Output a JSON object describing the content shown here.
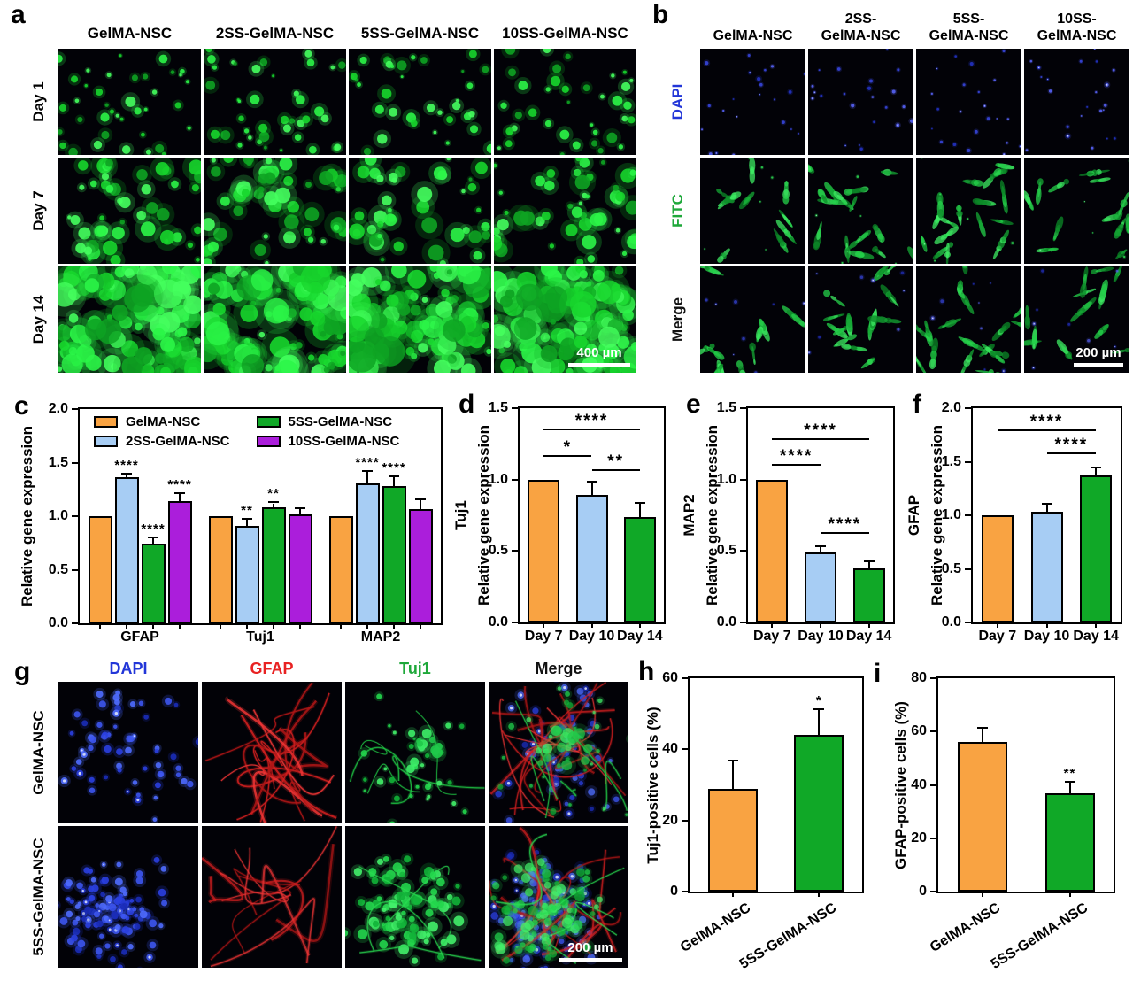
{
  "panels": {
    "a": {
      "letter": "a",
      "col_headers": [
        "GelMA-NSC",
        "2SS-GelMA-NSC",
        "5SS-GelMA-NSC",
        "10SS-GelMA-NSC"
      ],
      "row_labels": [
        "Day 1",
        "Day 7",
        "Day 14"
      ],
      "scale_bar": "400 µm"
    },
    "b": {
      "letter": "b",
      "col_headers": [
        [
          "GelMA-NSC"
        ],
        [
          "2SS-",
          "GelMA-NSC"
        ],
        [
          "5SS-",
          "GelMA-NSC"
        ],
        [
          "10SS-",
          "GelMA-NSC"
        ]
      ],
      "row_labels": [
        {
          "text": "DAPI",
          "color": "#2236d8"
        },
        {
          "text": "FITC",
          "color": "#1ea83a"
        },
        {
          "text": "Merge",
          "color": "#111111"
        }
      ],
      "scale_bar": "200 µm"
    },
    "c": {
      "letter": "c"
    },
    "d": {
      "letter": "d"
    },
    "e": {
      "letter": "e"
    },
    "f": {
      "letter": "f"
    },
    "g": {
      "letter": "g",
      "col_headers": [
        {
          "text": "DAPI",
          "color": "#2236d8"
        },
        {
          "text": "GFAP",
          "color": "#e82222"
        },
        {
          "text": "Tuj1",
          "color": "#1ea83a"
        },
        {
          "text": "Merge",
          "color": "#111111"
        }
      ],
      "row_labels": [
        "GelMA-NSC",
        "5SS-GelMA-NSC"
      ],
      "scale_bar": "200 µm"
    },
    "h": {
      "letter": "h"
    },
    "i": {
      "letter": "i"
    }
  },
  "colors": {
    "orange": "#F9A342",
    "blue": "#A7CDF4",
    "green": "#10A827",
    "purple": "#AB1EDB"
  },
  "chart_data": [
    {
      "id": "c",
      "type": "bar",
      "ylabels": [
        "Relative gene expression"
      ],
      "ylim": [
        0,
        2.0
      ],
      "yticks": [
        {
          "v": 0,
          "t": "0.0"
        },
        {
          "v": 0.5,
          "t": "0.5"
        },
        {
          "v": 1.0,
          "t": "1.0"
        },
        {
          "v": 1.5,
          "t": "1.5"
        },
        {
          "v": 2.0,
          "t": "2.0"
        }
      ],
      "legend": [
        {
          "label": "GelMA-NSC",
          "color": "orange"
        },
        {
          "label": "2SS-GelMA-NSC",
          "color": "blue"
        },
        {
          "label": "5SS-GelMA-NSC",
          "color": "green"
        },
        {
          "label": "10SS-GelMA-NSC",
          "color": "purple"
        }
      ],
      "groups": [
        {
          "label": "GFAP",
          "bars": [
            {
              "series": "GelMA-NSC",
              "color": "orange",
              "value": 1.0,
              "error": 0,
              "star": ""
            },
            {
              "series": "2SS-GelMA-NSC",
              "color": "blue",
              "value": 1.36,
              "error": 0.03,
              "star": "****"
            },
            {
              "series": "5SS-GelMA-NSC",
              "color": "green",
              "value": 0.74,
              "error": 0.05,
              "star": "****"
            },
            {
              "series": "10SS-GelMA-NSC",
              "color": "purple",
              "value": 1.14,
              "error": 0.07,
              "star": "****"
            }
          ]
        },
        {
          "label": "Tuj1",
          "bars": [
            {
              "series": "GelMA-NSC",
              "color": "orange",
              "value": 1.0,
              "error": 0,
              "star": ""
            },
            {
              "series": "2SS-GelMA-NSC",
              "color": "blue",
              "value": 0.91,
              "error": 0.06,
              "star": "**"
            },
            {
              "series": "5SS-GelMA-NSC",
              "color": "green",
              "value": 1.08,
              "error": 0.04,
              "star": "**"
            },
            {
              "series": "10SS-GelMA-NSC",
              "color": "purple",
              "value": 1.02,
              "error": 0.05,
              "star": ""
            }
          ]
        },
        {
          "label": "MAP2",
          "bars": [
            {
              "series": "GelMA-NSC",
              "color": "orange",
              "value": 1.0,
              "error": 0,
              "star": ""
            },
            {
              "series": "2SS-GelMA-NSC",
              "color": "blue",
              "value": 1.31,
              "error": 0.1,
              "star": "****"
            },
            {
              "series": "5SS-GelMA-NSC",
              "color": "green",
              "value": 1.28,
              "error": 0.08,
              "star": "****"
            },
            {
              "series": "10SS-GelMA-NSC",
              "color": "purple",
              "value": 1.07,
              "error": 0.08,
              "star": ""
            }
          ]
        }
      ]
    },
    {
      "id": "d",
      "type": "bar",
      "ylabels": [
        "Relative gene expression",
        "Tuj1"
      ],
      "ylim": [
        0,
        1.5
      ],
      "yticks": [
        {
          "v": 0,
          "t": "0.0"
        },
        {
          "v": 0.5,
          "t": "0.5"
        },
        {
          "v": 1.0,
          "t": "1.0"
        },
        {
          "v": 1.5,
          "t": "1.5"
        }
      ],
      "groups": [
        {
          "label": "Day 7",
          "bars": [
            {
              "color": "orange",
              "value": 1.0,
              "error": 0,
              "star": ""
            }
          ]
        },
        {
          "label": "Day 10",
          "bars": [
            {
              "color": "blue",
              "value": 0.89,
              "error": 0.09,
              "star": ""
            }
          ]
        },
        {
          "label": "Day 14",
          "bars": [
            {
              "color": "green",
              "value": 0.74,
              "error": 0.09,
              "star": ""
            }
          ]
        }
      ],
      "brackets": [
        {
          "from": 0,
          "to": 2,
          "y": 1.36,
          "label": "****"
        },
        {
          "from": 0,
          "to": 1,
          "y": 1.17,
          "label": "*"
        },
        {
          "from": 1,
          "to": 2,
          "y": 1.07,
          "label": "**"
        }
      ]
    },
    {
      "id": "e",
      "type": "bar",
      "ylabels": [
        "Relative gene expression",
        "MAP2"
      ],
      "ylim": [
        0,
        1.5
      ],
      "yticks": [
        {
          "v": 0,
          "t": "0.0"
        },
        {
          "v": 0.5,
          "t": "0.5"
        },
        {
          "v": 1.0,
          "t": "1.0"
        },
        {
          "v": 1.5,
          "t": "1.5"
        }
      ],
      "groups": [
        {
          "label": "Day 7",
          "bars": [
            {
              "color": "orange",
              "value": 1.0,
              "error": 0,
              "star": ""
            }
          ]
        },
        {
          "label": "Day 10",
          "bars": [
            {
              "color": "blue",
              "value": 0.49,
              "error": 0.04,
              "star": ""
            }
          ]
        },
        {
          "label": "Day 14",
          "bars": [
            {
              "color": "green",
              "value": 0.38,
              "error": 0.04,
              "star": ""
            }
          ]
        }
      ],
      "brackets": [
        {
          "from": 0,
          "to": 2,
          "y": 1.29,
          "label": "****"
        },
        {
          "from": 0,
          "to": 1,
          "y": 1.11,
          "label": "****"
        },
        {
          "from": 1,
          "to": 2,
          "y": 0.63,
          "label": "****"
        }
      ]
    },
    {
      "id": "f",
      "type": "bar",
      "ylabels": [
        "Relative gene expression",
        "GFAP"
      ],
      "ylim": [
        0,
        2.0
      ],
      "yticks": [
        {
          "v": 0,
          "t": "0.0"
        },
        {
          "v": 0.5,
          "t": "0.5"
        },
        {
          "v": 1.0,
          "t": "1.0"
        },
        {
          "v": 1.5,
          "t": "1.5"
        },
        {
          "v": 2.0,
          "t": "2.0"
        }
      ],
      "groups": [
        {
          "label": "Day 7",
          "bars": [
            {
              "color": "orange",
              "value": 1.0,
              "error": 0,
              "star": ""
            }
          ]
        },
        {
          "label": "Day 10",
          "bars": [
            {
              "color": "blue",
              "value": 1.03,
              "error": 0.07,
              "star": ""
            }
          ]
        },
        {
          "label": "Day 14",
          "bars": [
            {
              "color": "green",
              "value": 1.37,
              "error": 0.07,
              "star": ""
            }
          ]
        }
      ],
      "brackets": [
        {
          "from": 0,
          "to": 2,
          "y": 1.8,
          "label": "****"
        },
        {
          "from": 1,
          "to": 2,
          "y": 1.59,
          "label": "****"
        }
      ]
    },
    {
      "id": "h",
      "type": "bar",
      "ylabels": [
        "Tuj1-positive cells (%)"
      ],
      "ylim": [
        0,
        60
      ],
      "yticks": [
        {
          "v": 0,
          "t": "0"
        },
        {
          "v": 20,
          "t": "20"
        },
        {
          "v": 40,
          "t": "40"
        },
        {
          "v": 60,
          "t": "60"
        }
      ],
      "groups": [
        {
          "label": "GelMA-NSC",
          "bars": [
            {
              "color": "orange",
              "value": 29,
              "error": 7.5,
              "star": ""
            }
          ]
        },
        {
          "label": "5SS-GelMA-NSC",
          "bars": [
            {
              "color": "green",
              "value": 44,
              "error": 7,
              "star": "*"
            }
          ]
        }
      ],
      "brackets": []
    },
    {
      "id": "i",
      "type": "bar",
      "ylabels": [
        "GFAP-positive cells (%)"
      ],
      "ylim": [
        0,
        80
      ],
      "yticks": [
        {
          "v": 0,
          "t": "0"
        },
        {
          "v": 20,
          "t": "20"
        },
        {
          "v": 40,
          "t": "40"
        },
        {
          "v": 60,
          "t": "60"
        },
        {
          "v": 80,
          "t": "80"
        }
      ],
      "groups": [
        {
          "label": "GelMA-NSC",
          "bars": [
            {
              "color": "orange",
              "value": 56,
              "error": 5,
              "star": ""
            }
          ]
        },
        {
          "label": "5SS-GelMA-NSC",
          "bars": [
            {
              "color": "green",
              "value": 37,
              "error": 4,
              "star": "**"
            }
          ]
        }
      ],
      "brackets": []
    }
  ]
}
